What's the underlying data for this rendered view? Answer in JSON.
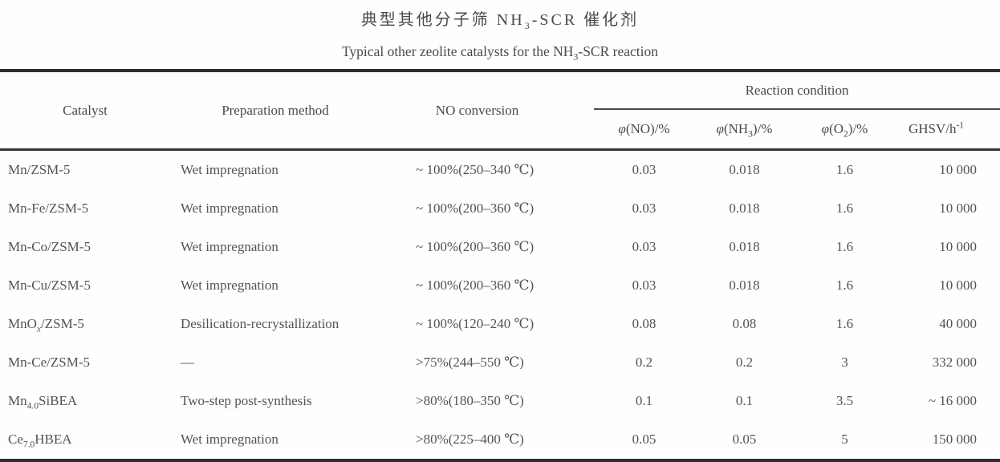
{
  "colors": {
    "background": "#ffffff",
    "text": "#4c4c4c",
    "rule_heavy": "#2d2d2d",
    "rule_medium": "#343434",
    "rule_light": "#4a4a4a"
  },
  "title": {
    "zh": "典型其他分子筛 NH<sub>3</sub>-SCR 催化剂",
    "en": "Typical other zeolite catalysts for the NH<sub>3</sub>-SCR reaction"
  },
  "table": {
    "group_header": "Reaction condition",
    "columns": [
      {
        "key": "catalyst",
        "label": "Catalyst"
      },
      {
        "key": "preparation",
        "label": "Preparation method"
      },
      {
        "key": "no_conversion",
        "label": "NO conversion"
      },
      {
        "key": "phi_no",
        "label": "<i>φ</i>(NO)/%",
        "group": "Reaction condition"
      },
      {
        "key": "phi_nh3",
        "label": "<i>φ</i>(NH<sub>3</sub>)/%",
        "group": "Reaction condition"
      },
      {
        "key": "phi_o2",
        "label": "<i>φ</i>(O<sub>2</sub>)/%",
        "group": "Reaction condition"
      },
      {
        "key": "ghsv",
        "label": "GHSV/h<sup>-1</sup>",
        "group": "Reaction condition"
      }
    ],
    "rows": [
      [
        "Mn/ZSM-5",
        "Wet impregnation",
        "~ 100%(250–340 ℃)",
        "0.03",
        "0.018",
        "1.6",
        "10 000"
      ],
      [
        "Mn-Fe/ZSM-5",
        "Wet impregnation",
        "~ 100%(200–360 ℃)",
        "0.03",
        "0.018",
        "1.6",
        "10 000"
      ],
      [
        "Mn-Co/ZSM-5",
        "Wet impregnation",
        "~ 100%(200–360 ℃)",
        "0.03",
        "0.018",
        "1.6",
        "10 000"
      ],
      [
        "Mn-Cu/ZSM-5",
        "Wet impregnation",
        "~ 100%(200–360 ℃)",
        "0.03",
        "0.018",
        "1.6",
        "10 000"
      ],
      [
        "MnO<sub><i>x</i></sub>/ZSM-5",
        "Desilication-recrystallization",
        "~ 100%(120–240 ℃)",
        "0.08",
        "0.08",
        "1.6",
        "40 000"
      ],
      [
        "Mn-Ce/ZSM-5",
        "—",
        ">75%(244–550 ℃)",
        "0.2",
        "0.2",
        "3",
        "332 000"
      ],
      [
        "Mn<sub>4.0</sub>SiBEA",
        "Two-step post-synthesis",
        ">80%(180–350 ℃)",
        "0.1",
        "0.1",
        "3.5",
        "~ 16 000"
      ],
      [
        "Ce<sub>7.0</sub>HBEA",
        "Wet impregnation",
        ">80%(225–400 ℃)",
        "0.05",
        "0.05",
        "5",
        "150 000"
      ]
    ]
  }
}
